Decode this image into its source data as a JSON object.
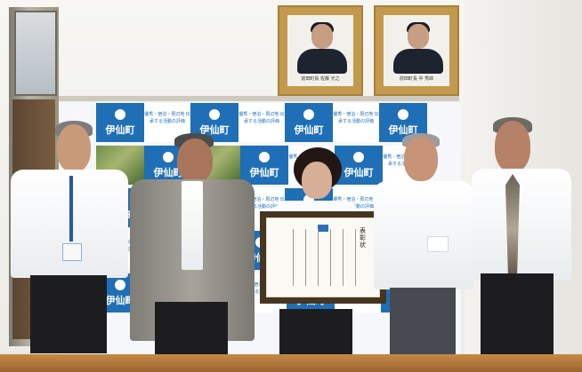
{
  "portraits": [
    {
      "caption": "前田町長 佐藤 光之"
    },
    {
      "caption": "前田町長 中 秀郎"
    }
  ],
  "backdrop": {
    "logo_text": "伊仙町",
    "label_text": "優秀・宿泊・周辺地 伝承する活動の評価"
  },
  "certificate": {
    "title": "表彰状"
  }
}
